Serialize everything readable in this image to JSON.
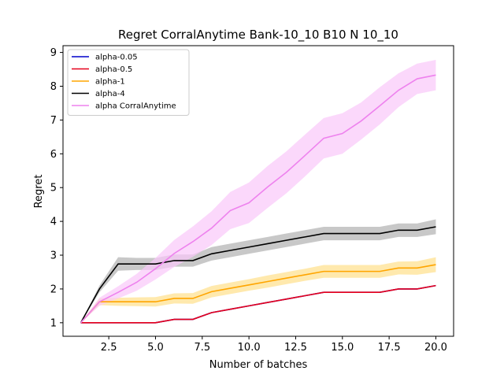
{
  "chart_data": {
    "type": "line",
    "title": "Regret CorralAnytime Bank-10_10 B10 N 10_10",
    "xlabel": "Number of batches",
    "ylabel": "Regret",
    "xlim": [
      0.05,
      20.95
    ],
    "ylim": [
      0.6,
      9.2
    ],
    "xticks": [
      2.5,
      5.0,
      7.5,
      10.0,
      12.5,
      15.0,
      17.5,
      20.0
    ],
    "xtick_labels": [
      "2.5",
      "5.0",
      "7.5",
      "10.0",
      "12.5",
      "15.0",
      "17.5",
      "20.0"
    ],
    "yticks": [
      1,
      2,
      3,
      4,
      5,
      6,
      7,
      8,
      9
    ],
    "ytick_labels": [
      "1",
      "2",
      "3",
      "4",
      "5",
      "6",
      "7",
      "8",
      "9"
    ],
    "grid": false,
    "legend_position": "upper-left",
    "x": [
      1,
      2,
      3,
      4,
      5,
      6,
      7,
      8,
      9,
      10,
      11,
      12,
      13,
      14,
      15,
      16,
      17,
      18,
      19,
      20
    ],
    "series": [
      {
        "name": "alpha-0.05",
        "color": "#0000cc",
        "values": [
          1,
          1,
          1,
          1,
          1,
          1.1,
          1.1,
          1.3,
          1.4,
          1.5,
          1.6,
          1.7,
          1.8,
          1.9,
          1.9,
          1.9,
          1.9,
          2.0,
          2.0,
          2.1
        ],
        "band": null
      },
      {
        "name": "alpha-0.5",
        "color": "#e6001a",
        "values": [
          1,
          1,
          1,
          1,
          1,
          1.1,
          1.1,
          1.3,
          1.4,
          1.5,
          1.6,
          1.7,
          1.8,
          1.9,
          1.9,
          1.9,
          1.9,
          2.0,
          2.0,
          2.1
        ],
        "band": null
      },
      {
        "name": "alpha-1",
        "color": "#ffa500",
        "values": [
          1,
          1.62,
          1.62,
          1.62,
          1.62,
          1.72,
          1.72,
          1.92,
          2.02,
          2.12,
          2.22,
          2.32,
          2.42,
          2.52,
          2.52,
          2.52,
          2.52,
          2.62,
          2.62,
          2.72
        ],
        "band": [
          0,
          0.1,
          0.12,
          0.13,
          0.14,
          0.15,
          0.16,
          0.17,
          0.17,
          0.17,
          0.18,
          0.18,
          0.18,
          0.19,
          0.19,
          0.19,
          0.19,
          0.19,
          0.2,
          0.22
        ],
        "band_color": "#ffe08a"
      },
      {
        "name": "alpha-4",
        "color": "#000000",
        "values": [
          1,
          2.0,
          2.74,
          2.74,
          2.74,
          2.84,
          2.84,
          3.04,
          3.14,
          3.24,
          3.34,
          3.44,
          3.54,
          3.64,
          3.64,
          3.64,
          3.64,
          3.74,
          3.74,
          3.84
        ],
        "band": [
          0,
          0.1,
          0.2,
          0.18,
          0.18,
          0.18,
          0.18,
          0.2,
          0.2,
          0.2,
          0.2,
          0.2,
          0.2,
          0.2,
          0.2,
          0.2,
          0.2,
          0.2,
          0.2,
          0.22
        ],
        "band_color": "#b0b0b0"
      },
      {
        "name": "alpha CorralAnytime",
        "color": "#ee82ee",
        "values": [
          1,
          1.62,
          1.9,
          2.2,
          2.6,
          3.05,
          3.4,
          3.8,
          4.32,
          4.55,
          5.02,
          5.45,
          5.95,
          6.46,
          6.6,
          6.97,
          7.42,
          7.88,
          8.22,
          8.33
        ],
        "band": [
          0,
          0.12,
          0.18,
          0.25,
          0.32,
          0.4,
          0.45,
          0.5,
          0.55,
          0.6,
          0.62,
          0.62,
          0.62,
          0.6,
          0.6,
          0.55,
          0.55,
          0.5,
          0.45,
          0.45
        ],
        "band_color": "#f9c8f9"
      }
    ]
  }
}
